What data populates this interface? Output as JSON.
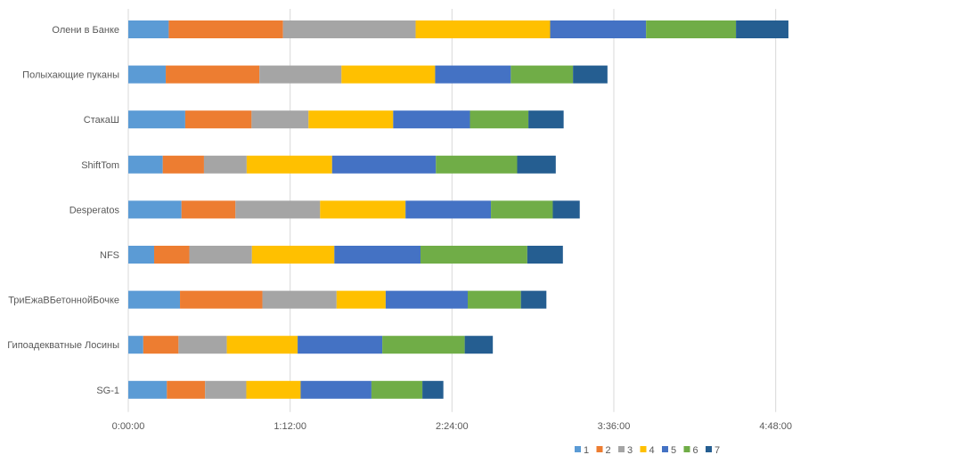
{
  "chart_data": {
    "type": "bar",
    "orientation": "horizontal",
    "stacked": true,
    "title": "",
    "xlabel": "",
    "ylabel": "",
    "x_unit": "seconds",
    "xlim": [
      0,
      20736
    ],
    "x_ticks": [
      0,
      4320,
      8640,
      12960,
      17280
    ],
    "x_tick_labels": [
      "0:00:00",
      "1:12:00",
      "2:24:00",
      "3:36:00",
      "4:48:00"
    ],
    "grid": "vertical",
    "legend_position": "bottom",
    "categories": [
      "Олени в Банке",
      "Полыхающие пуканы",
      "СтакаШ",
      "ShiftTom",
      "Desperatos",
      "NFS",
      "ТриЕжаВБетоннойБочке",
      "Гипоадекватные Лосины",
      "SG-1"
    ],
    "series": [
      {
        "name": "1",
        "color": "#5B9BD5",
        "values": [
          1080,
          1000,
          1520,
          920,
          1420,
          690,
          1380,
          400,
          1030
        ]
      },
      {
        "name": "2",
        "color": "#ED7D31",
        "values": [
          3050,
          2500,
          1770,
          1100,
          1440,
          940,
          2200,
          940,
          1020
        ]
      },
      {
        "name": "3",
        "color": "#A5A5A5",
        "values": [
          3540,
          2190,
          1520,
          1140,
          2260,
          1670,
          1980,
          1290,
          1100
        ]
      },
      {
        "name": "4",
        "color": "#FFC000",
        "values": [
          3590,
          2500,
          2260,
          2280,
          2280,
          2200,
          1310,
          1890,
          1450
        ]
      },
      {
        "name": "5",
        "color": "#4472C4",
        "values": [
          2560,
          2020,
          2050,
          2770,
          2280,
          2300,
          2190,
          2260,
          1890
        ]
      },
      {
        "name": "6",
        "color": "#70AD47",
        "values": [
          2400,
          1660,
          1560,
          2170,
          1650,
          2850,
          1420,
          2200,
          1360
        ]
      },
      {
        "name": "7",
        "color": "#255E91",
        "values": [
          1400,
          920,
          940,
          1030,
          720,
          950,
          680,
          750,
          560
        ]
      }
    ]
  }
}
